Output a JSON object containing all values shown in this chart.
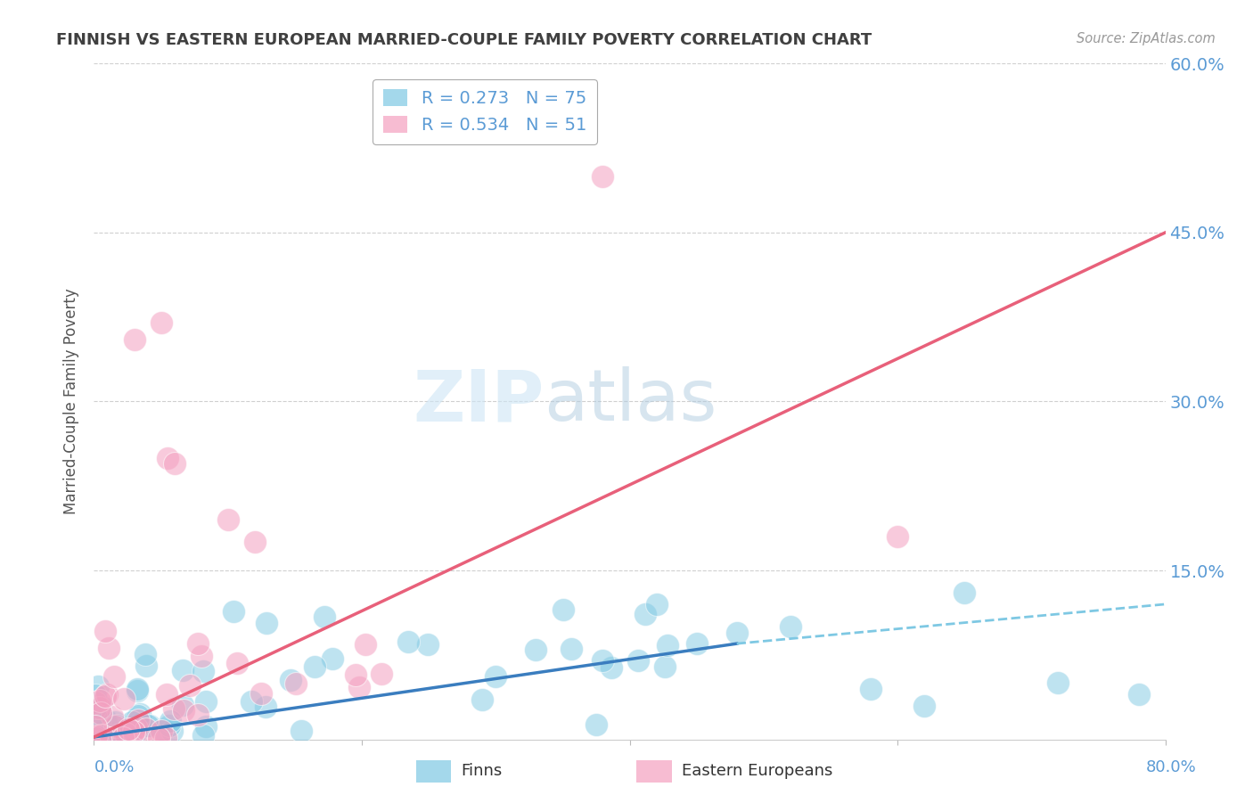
{
  "title": "FINNISH VS EASTERN EUROPEAN MARRIED-COUPLE FAMILY POVERTY CORRELATION CHART",
  "source": "Source: ZipAtlas.com",
  "ylabel": "Married-Couple Family Poverty",
  "xlim": [
    0.0,
    0.8
  ],
  "ylim": [
    0.0,
    0.6
  ],
  "xticks": [
    0.0,
    0.2,
    0.4,
    0.6,
    0.8
  ],
  "yticks": [
    0.0,
    0.15,
    0.3,
    0.45,
    0.6
  ],
  "xticklabels": [
    "0.0%",
    "",
    "",
    "",
    ""
  ],
  "right_yticklabels": [
    "",
    "15.0%",
    "30.0%",
    "45.0%",
    "60.0%"
  ],
  "left_yticklabels": [
    "",
    "",
    "",
    "",
    ""
  ],
  "bottom_xlabels_left": "0.0%",
  "bottom_xlabels_right": "80.0%",
  "finns_R": 0.273,
  "finns_N": 75,
  "eastern_R": 0.534,
  "eastern_N": 51,
  "finns_color": "#7ec8e3",
  "eastern_color": "#f4a0c0",
  "trend_blue_solid": "#3a7dbf",
  "trend_blue_dash": "#7ec8e3",
  "trend_pink": "#e8607a",
  "watermark_zip": "ZIP",
  "watermark_atlas": "atlas",
  "background_color": "#ffffff",
  "grid_color": "#d0d0d0",
  "tick_color": "#5b9bd5",
  "title_color": "#404040",
  "legend_box_color": "#5b9bd5",
  "bottom_legend": [
    "Finns",
    "Eastern Europeans"
  ],
  "finns_trend_x0": 0.0,
  "finns_trend_y0": 0.002,
  "finns_trend_x_solid_end": 0.48,
  "finns_trend_y_solid_end": 0.085,
  "finns_trend_x1": 0.8,
  "finns_trend_y1": 0.12,
  "eastern_trend_x0": 0.0,
  "eastern_trend_y0": 0.002,
  "eastern_trend_x1": 0.8,
  "eastern_trend_y1": 0.45
}
